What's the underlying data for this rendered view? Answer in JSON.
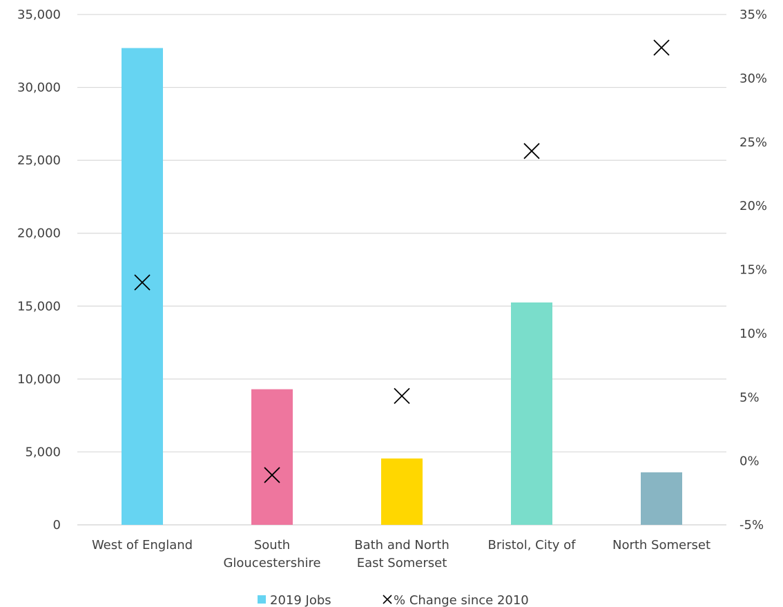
{
  "chart_data": {
    "type": "bar",
    "categories": [
      [
        "West of England"
      ],
      [
        "South",
        "Gloucestershire"
      ],
      [
        "Bath and North",
        "East Somerset"
      ],
      [
        "Bristol, City of"
      ],
      [
        "North Somerset"
      ]
    ],
    "series": [
      {
        "name": "2019 Jobs",
        "type": "bar",
        "axis": "left",
        "values": [
          32700,
          9300,
          4550,
          15250,
          3600
        ],
        "colors": [
          "#66D4F2",
          "#EE769E",
          "#FFD700",
          "#7ADDCB",
          "#88B5C3"
        ]
      },
      {
        "name": "% Change since 2010",
        "type": "scatter",
        "marker": "x",
        "axis": "right",
        "values": [
          14.0,
          -1.1,
          5.1,
          24.3,
          32.4
        ],
        "color": "#000000"
      }
    ],
    "y_left": {
      "min": 0,
      "max": 35000,
      "step": 5000,
      "tick_labels": [
        "0",
        "5,000",
        "10,000",
        "15,000",
        "20,000",
        "25,000",
        "30,000",
        "35,000"
      ]
    },
    "y_right": {
      "min": -5,
      "max": 35,
      "step": 5,
      "tick_labels": [
        "-5%",
        "0%",
        "5%",
        "10%",
        "15%",
        "20%",
        "25%",
        "30%",
        "35%"
      ]
    },
    "grid": true,
    "legend_position": "bottom-center",
    "legend": [
      "2019 Jobs",
      "% Change since 2010"
    ]
  }
}
